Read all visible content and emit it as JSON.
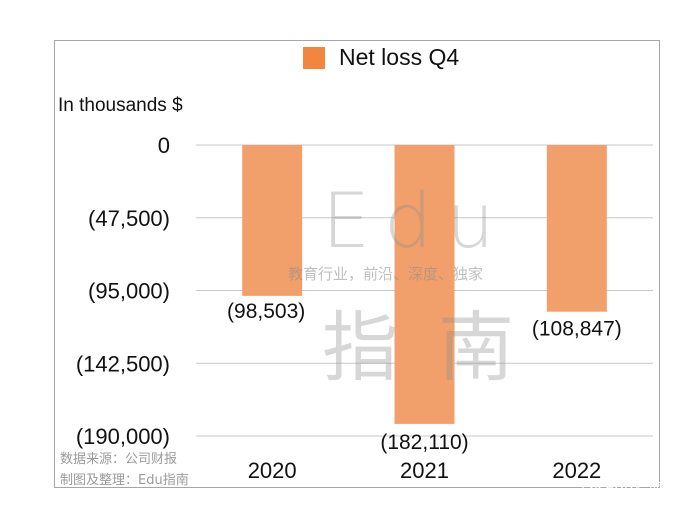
{
  "chart_data": {
    "type": "bar",
    "categories": [
      "2020",
      "2021",
      "2022"
    ],
    "series": [
      {
        "name": "Net loss Q4",
        "values": [
          -98503,
          -182110,
          -108847
        ]
      }
    ],
    "data_labels": [
      "(98,503)",
      "(182,110)",
      "(108,847)"
    ],
    "unit_label": "In thousands $",
    "ylim": [
      -190000,
      0
    ],
    "yticks": [
      0,
      -47500,
      -95000,
      -142500,
      -190000
    ],
    "ytick_labels": [
      "0",
      "(47,500)",
      "(95,000)",
      "(142,500)",
      "(190,000)"
    ],
    "grid": true,
    "legend_position": "top",
    "colors": {
      "bar": "#f2a06b",
      "legend": "#f2863e",
      "grid": "#c8c8c8"
    }
  },
  "watermark": {
    "latin": "Edu",
    "tagline": "教育行业，前沿、深度、独家",
    "cjk": "指南"
  },
  "source": {
    "line1": "数据来源：公司财报",
    "line2": "制图及整理：Edu指南"
  },
  "badge": {
    "label": "Edu指南",
    "icon": "wechat-icon"
  }
}
